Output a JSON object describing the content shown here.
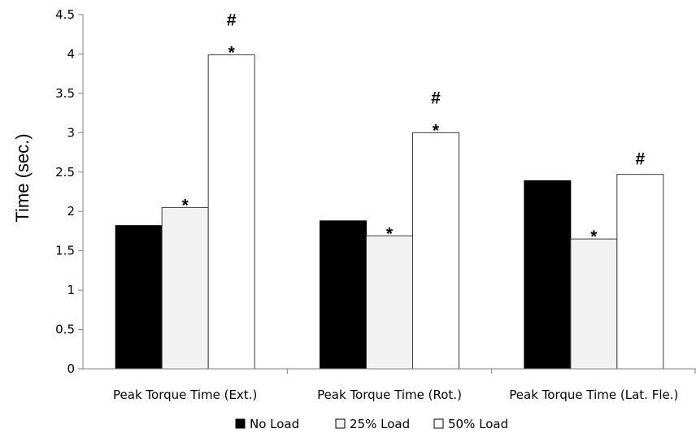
{
  "chart_data": {
    "type": "bar",
    "title": "",
    "xlabel": "",
    "ylabel": "Time (sec.)",
    "ylim": [
      0,
      4.5
    ],
    "yticks": [
      "0",
      "0.5",
      "1",
      "1.5",
      "2",
      "2.5",
      "3",
      "3.5",
      "4",
      "4.5"
    ],
    "categories": [
      "Peak Torque Time (Ext.)",
      "Peak Torque Time (Rot.)",
      "Peak Torque Time (Lat. Fle.)"
    ],
    "series": [
      {
        "name": "No Load",
        "color": "#000000",
        "values": [
          1.82,
          1.88,
          2.39
        ]
      },
      {
        "name": "25% Load",
        "color": "#f2f2f2",
        "values": [
          2.05,
          1.69,
          1.65
        ]
      },
      {
        "name": "50% Load",
        "color": "#ffffff",
        "values": [
          3.99,
          3.0,
          2.47
        ]
      }
    ],
    "annotations": [
      {
        "category": 0,
        "series": 1,
        "text": "*"
      },
      {
        "category": 0,
        "series": 2,
        "text": "*"
      },
      {
        "category": 0,
        "series": 2,
        "text": "#"
      },
      {
        "category": 1,
        "series": 1,
        "text": "*"
      },
      {
        "category": 1,
        "series": 2,
        "text": "*"
      },
      {
        "category": 1,
        "series": 2,
        "text": "#"
      },
      {
        "category": 2,
        "series": 1,
        "text": "*"
      },
      {
        "category": 2,
        "series": 2,
        "text": "#"
      }
    ],
    "grid": false,
    "legend_position": "bottom"
  }
}
